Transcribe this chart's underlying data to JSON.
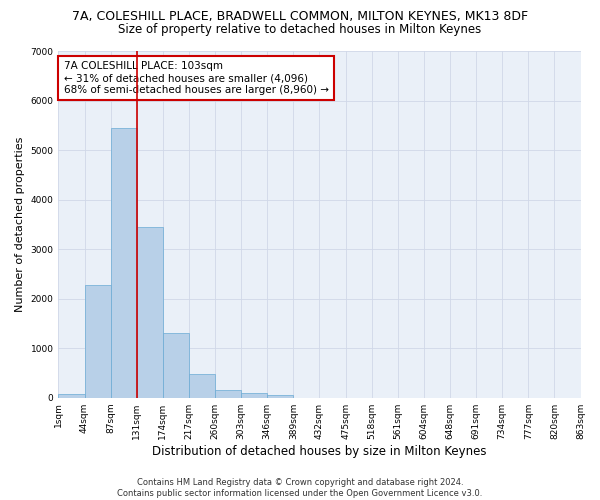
{
  "title": "7A, COLESHILL PLACE, BRADWELL COMMON, MILTON KEYNES, MK13 8DF",
  "subtitle": "Size of property relative to detached houses in Milton Keynes",
  "xlabel": "Distribution of detached houses by size in Milton Keynes",
  "ylabel": "Number of detached properties",
  "footer_line1": "Contains HM Land Registry data © Crown copyright and database right 2024.",
  "footer_line2": "Contains public sector information licensed under the Open Government Licence v3.0.",
  "bar_values": [
    75,
    2280,
    5450,
    3450,
    1310,
    470,
    155,
    95,
    55,
    0,
    0,
    0,
    0,
    0,
    0,
    0,
    0,
    0,
    0,
    0
  ],
  "x_labels": [
    "1sqm",
    "44sqm",
    "87sqm",
    "131sqm",
    "174sqm",
    "217sqm",
    "260sqm",
    "303sqm",
    "346sqm",
    "389sqm",
    "432sqm",
    "475sqm",
    "518sqm",
    "561sqm",
    "604sqm",
    "648sqm",
    "691sqm",
    "734sqm",
    "777sqm",
    "820sqm",
    "863sqm"
  ],
  "bar_color": "#b8d0e8",
  "bar_edge_color": "#6aaad4",
  "grid_color": "#d0d8e8",
  "bg_color": "#eaf0f8",
  "annotation_box_color": "#cc0000",
  "vline_color": "#cc0000",
  "vline_x_index": 2,
  "annotation_text": "7A COLESHILL PLACE: 103sqm\n← 31% of detached houses are smaller (4,096)\n68% of semi-detached houses are larger (8,960) →",
  "ylim": [
    0,
    7000
  ],
  "yticks": [
    0,
    1000,
    2000,
    3000,
    4000,
    5000,
    6000,
    7000
  ],
  "title_fontsize": 9,
  "subtitle_fontsize": 8.5,
  "xlabel_fontsize": 8.5,
  "ylabel_fontsize": 8,
  "annotation_fontsize": 7.5,
  "tick_fontsize": 6.5,
  "footer_fontsize": 6
}
